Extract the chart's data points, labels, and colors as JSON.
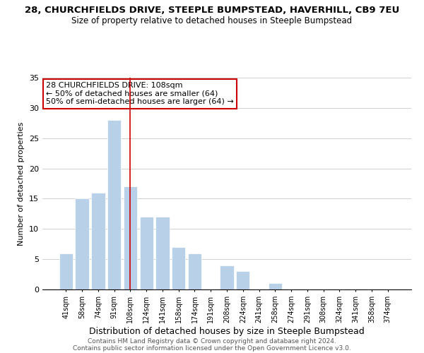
{
  "title": "28, CHURCHFIELDS DRIVE, STEEPLE BUMPSTEAD, HAVERHILL, CB9 7EU",
  "subtitle": "Size of property relative to detached houses in Steeple Bumpstead",
  "xlabel": "Distribution of detached houses by size in Steeple Bumpstead",
  "ylabel": "Number of detached properties",
  "footer_line1": "Contains HM Land Registry data © Crown copyright and database right 2024.",
  "footer_line2": "Contains public sector information licensed under the Open Government Licence v3.0.",
  "annotation_line1": "28 CHURCHFIELDS DRIVE: 108sqm",
  "annotation_line2": "← 50% of detached houses are smaller (64)",
  "annotation_line3": "50% of semi-detached houses are larger (64) →",
  "bar_labels": [
    "41sqm",
    "58sqm",
    "74sqm",
    "91sqm",
    "108sqm",
    "124sqm",
    "141sqm",
    "158sqm",
    "174sqm",
    "191sqm",
    "208sqm",
    "224sqm",
    "241sqm",
    "258sqm",
    "274sqm",
    "291sqm",
    "308sqm",
    "324sqm",
    "341sqm",
    "358sqm",
    "374sqm"
  ],
  "bar_values": [
    6,
    15,
    16,
    28,
    17,
    12,
    12,
    7,
    6,
    0,
    4,
    3,
    0,
    1,
    0,
    0,
    0,
    0,
    0,
    0,
    0
  ],
  "bar_color": "#b8d0e8",
  "annotation_box_edge_color": "#cc0000",
  "annotation_vline_color": "#cc0000",
  "highlight_bar_index": 4,
  "ylim": [
    0,
    35
  ],
  "yticks": [
    0,
    5,
    10,
    15,
    20,
    25,
    30,
    35
  ],
  "bg_color": "#ffffff",
  "grid_color": "#d0d0d0",
  "title_fontsize": 9.5,
  "subtitle_fontsize": 8.5,
  "xlabel_fontsize": 9,
  "ylabel_fontsize": 8,
  "annotation_fontsize": 8,
  "footer_fontsize": 6.5
}
